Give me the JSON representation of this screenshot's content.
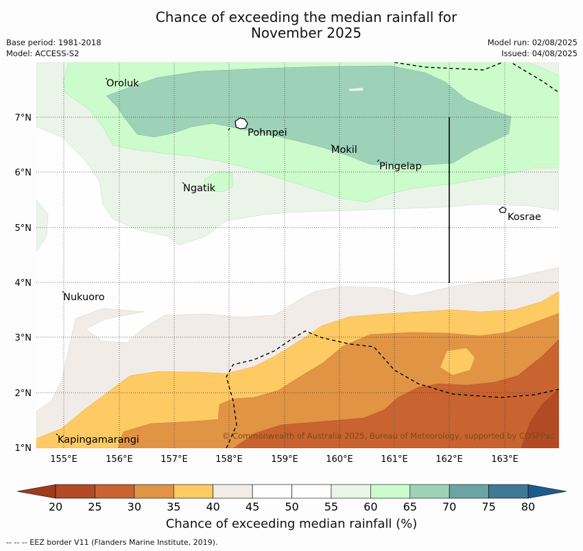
{
  "title_line1": "Chance of exceeding the median rainfall for",
  "title_line2": "November 2025",
  "meta": {
    "base_period": "Base period: 1981-2018",
    "model": "Model: ACCESS-S2",
    "model_run": "Model run: 02/08/2025",
    "issued": "Issued: 04/08/2025"
  },
  "lat_labels": [
    "7°N",
    "6°N",
    "5°N",
    "4°N",
    "3°N",
    "2°N",
    "1°N"
  ],
  "lon_labels": [
    "155°E",
    "156°E",
    "157°E",
    "158°E",
    "159°E",
    "160°E",
    "161°E",
    "162°E",
    "163°E"
  ],
  "places": {
    "oroluk": "Oroluk",
    "pohnpei": "Pohnpei",
    "mokil": "Mokil",
    "pingelap": "Pingelap",
    "ngatik": "Ngatik",
    "kosrae": "Kosrae",
    "nukuoro": "Nukuoro",
    "kapingamarangi": "Kapingamarangi"
  },
  "copyright": "© Commonwealth of Australia 2025, Bureau of Meteorology, supported by COSPPac",
  "colorbar": {
    "ticks": [
      "20",
      "25",
      "30",
      "35",
      "40",
      "45",
      "50",
      "55",
      "60",
      "65",
      "70",
      "75",
      "80"
    ],
    "colors": [
      "#b24b24",
      "#c9632f",
      "#e09444",
      "#fdca63",
      "#f1ece7",
      "#fdfefd",
      "#fdfefd",
      "#eaf4e8",
      "#ccfccc",
      "#9dd1b8",
      "#6ba4a4",
      "#3e7996"
    ],
    "under_color": "#a03c1e",
    "over_color": "#1f5a8c",
    "label": "Chance of exceeding median rainfall (%)"
  },
  "footer": "--  --  -- EEZ border V11 (Flanders Marine Institute, 2019)."
}
